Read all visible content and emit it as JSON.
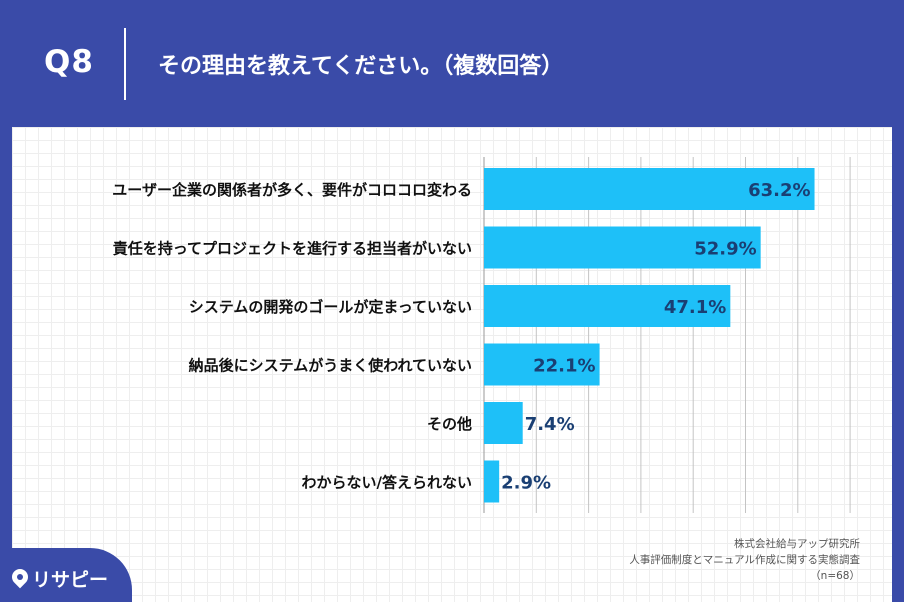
{
  "header": {
    "q_label": "Q8",
    "title": "その理由を教えてください。（複数回答）"
  },
  "chart_data": {
    "type": "bar",
    "orientation": "horizontal",
    "categories": [
      "ユーザー企業の関係者が多く、要件がコロコロ変わる",
      "責任を持ってプロジェクトを進行する担当者がいない",
      "システムの開発のゴールが定まっていない",
      "納品後にシステムがうまく使われていない",
      "その他",
      "わからない/答えられない"
    ],
    "values": [
      63.2,
      52.9,
      47.1,
      22.1,
      7.4,
      2.9
    ],
    "value_labels": [
      "63.2%",
      "52.9%",
      "47.1%",
      "22.1%",
      "7.4%",
      "2.9%"
    ],
    "xlim": [
      0,
      70
    ],
    "grid": true,
    "bar_color": "#1ec0f8",
    "label_color": "#1a3f73"
  },
  "credit": {
    "line1": "株式会社給与アップ研究所",
    "line2": "人事評価制度とマニュアル作成に関する実態調査",
    "line3": "（n=68）"
  },
  "logo": {
    "text": "リサピー",
    "icon": "location-pin-icon"
  },
  "colors": {
    "background": "#3a4ba8",
    "panel": "#ffffff"
  }
}
